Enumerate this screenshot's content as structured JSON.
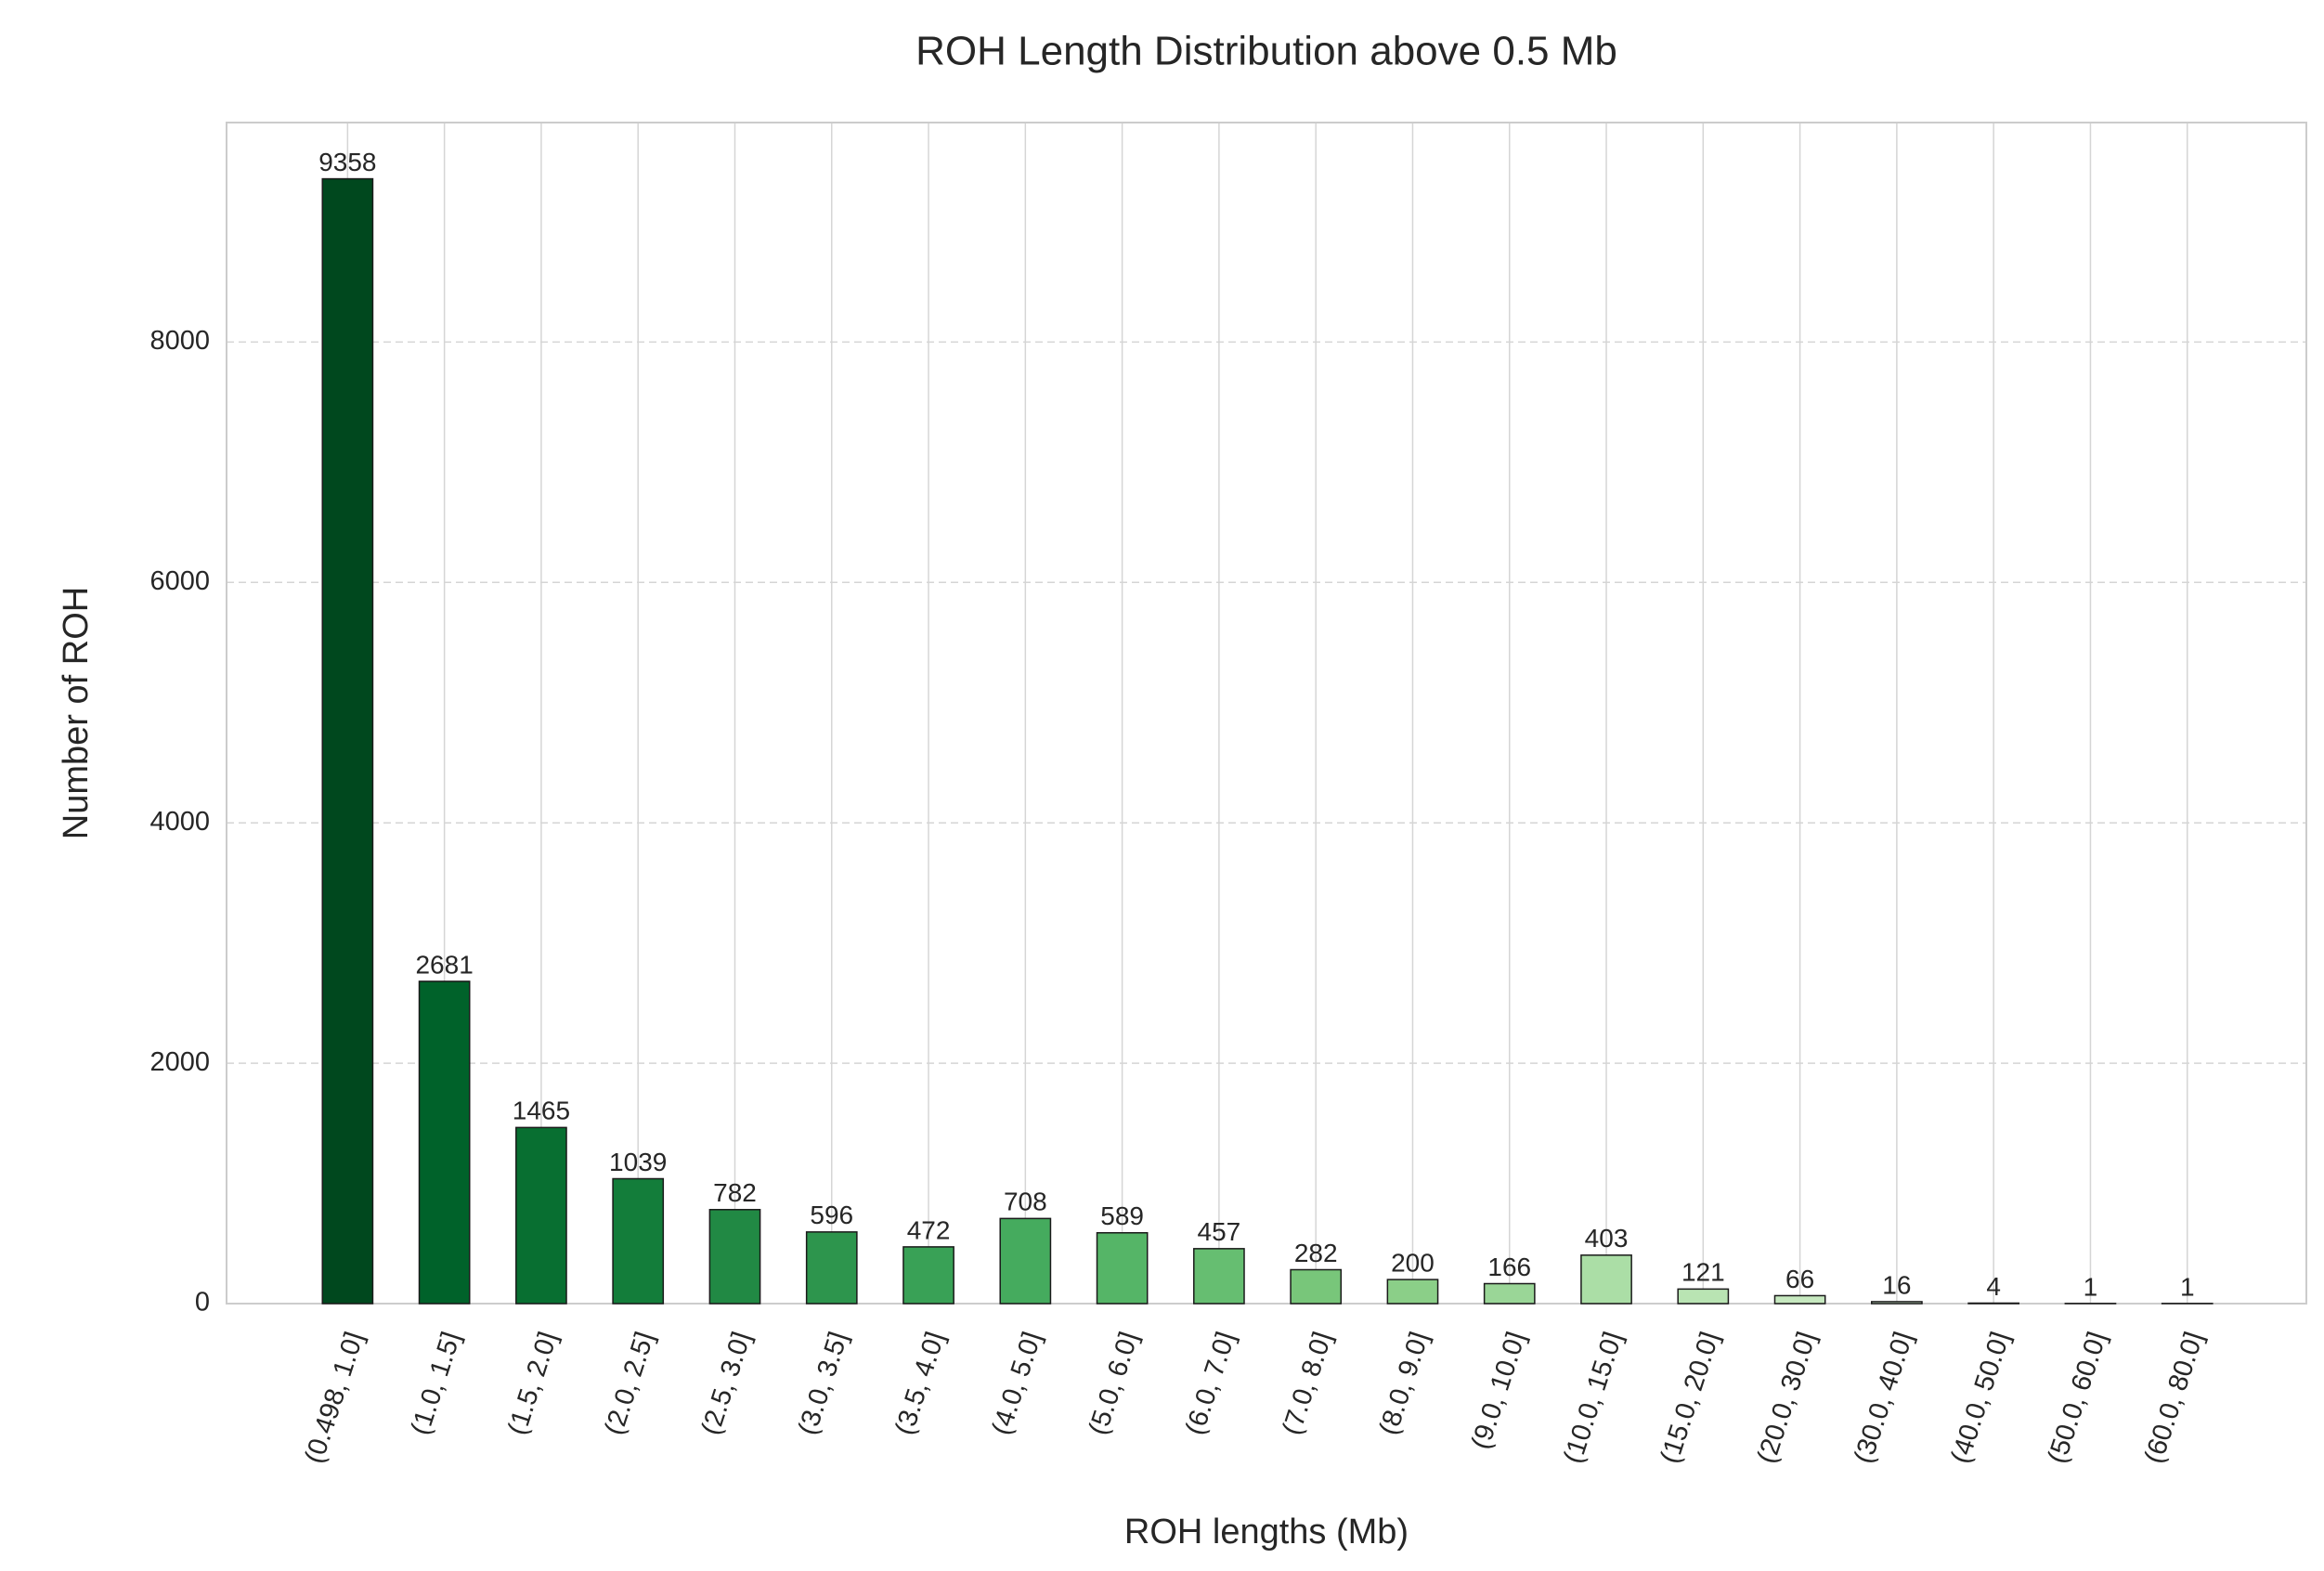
{
  "chart_data": {
    "type": "bar",
    "title": "ROH Length Distribution above 0.5 Mb",
    "x_label": "ROH lengths (Mb)",
    "y_label": "Number of ROH",
    "categories": [
      "(0.498, 1.0]",
      "(1.0, 1.5]",
      "(1.5, 2.0]",
      "(2.0, 2.5]",
      "(2.5, 3.0]",
      "(3.0, 3.5]",
      "(3.5, 4.0]",
      "(4.0, 5.0]",
      "(5.0, 6.0]",
      "(6.0, 7.0]",
      "(7.0, 8.0]",
      "(8.0, 9.0]",
      "(9.0, 10.0]",
      "(10.0, 15.0]",
      "(15.0, 20.0]",
      "(20.0, 30.0]",
      "(30.0, 40.0]",
      "(40.0, 50.0]",
      "(50.0, 60.0]",
      "(60.0, 80.0]"
    ],
    "values": [
      9358,
      2681,
      1465,
      1039,
      782,
      596,
      472,
      708,
      589,
      457,
      282,
      200,
      166,
      403,
      121,
      66,
      16,
      4,
      1,
      1
    ],
    "colors": [
      "#00481e",
      "#00622a",
      "#086f31",
      "#137d3a",
      "#218944",
      "#2d954d",
      "#39a156",
      "#45ab5e",
      "#55b567",
      "#66be71",
      "#78c67a",
      "#8bcf88",
      "#9ad697",
      "#abdea6",
      "#b9e4b3",
      "#c7e9c0",
      "#d2eecd",
      "#dcf2d7",
      "#e5f5e0",
      "#edf8e9"
    ],
    "ylim": [
      0,
      9826
    ],
    "yticks": [
      0,
      2000,
      4000,
      6000,
      8000
    ],
    "grid": true
  }
}
